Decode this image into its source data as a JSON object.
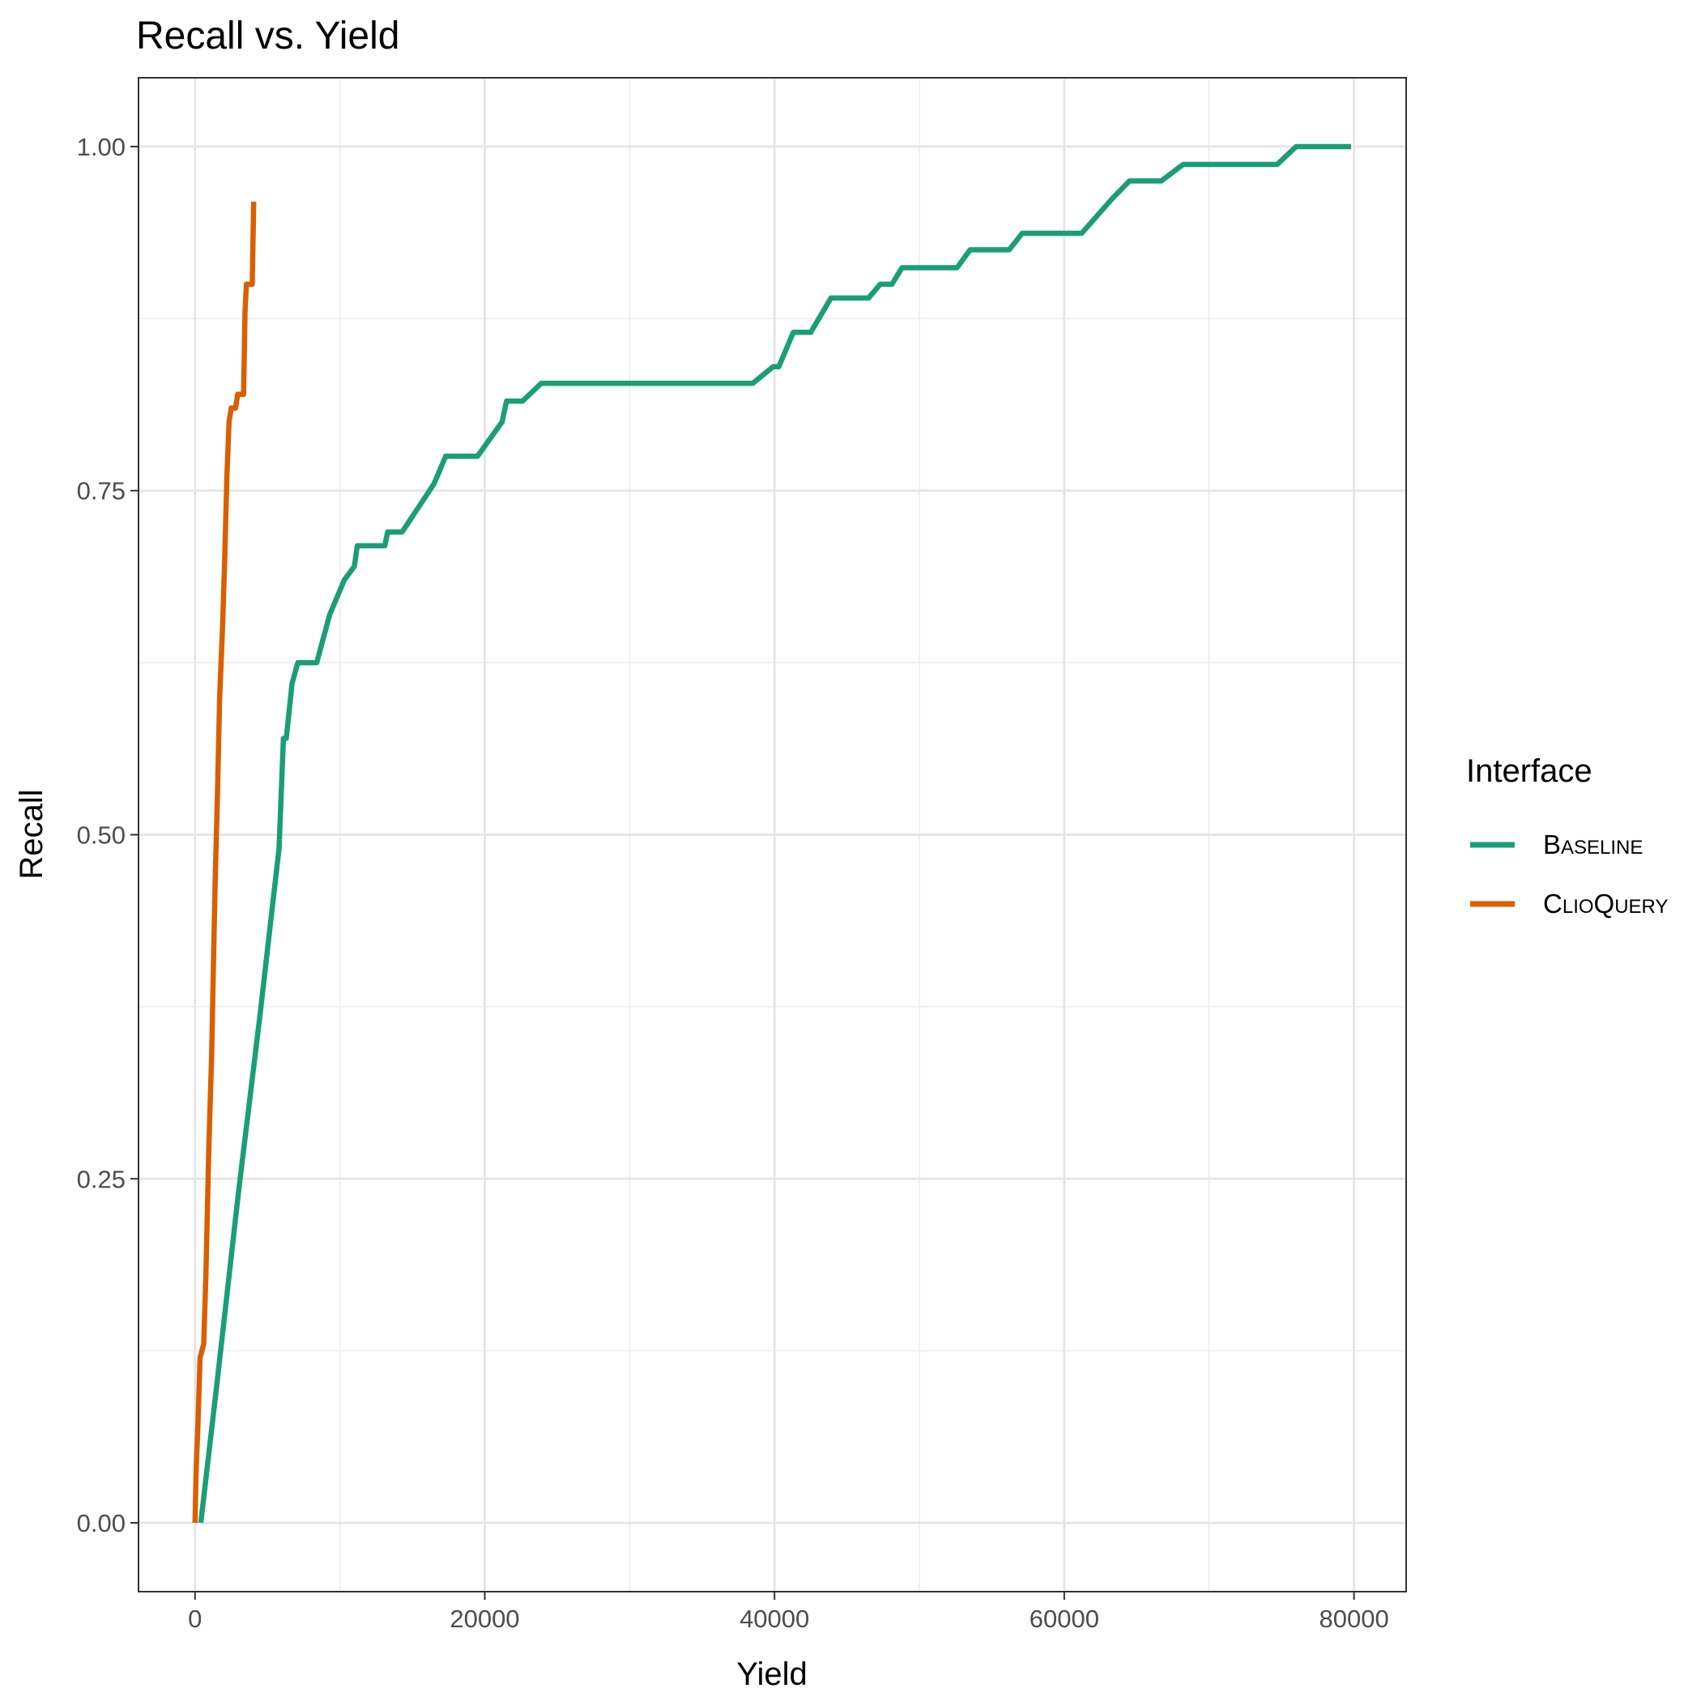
{
  "chart_data": {
    "type": "line",
    "title": "Recall vs. Yield",
    "xlabel": "Yield",
    "ylabel": "Recall",
    "xlim": [
      -3900,
      83600
    ],
    "ylim": [
      -0.05,
      1.05
    ],
    "x_ticks": [
      0,
      20000,
      40000,
      60000,
      80000
    ],
    "x_tick_labels": [
      "0",
      "20000",
      "40000",
      "60000",
      "80000"
    ],
    "y_ticks": [
      0,
      0.25,
      0.5,
      0.75,
      1.0
    ],
    "y_tick_labels": [
      "0.00",
      "0.25",
      "0.50",
      "0.75",
      "1.00"
    ],
    "grid": true,
    "legend": {
      "title": "Interface",
      "position": "right",
      "entries": [
        {
          "cap": "B",
          "rest": "ASELINE",
          "color": "#1b9e77"
        },
        {
          "cap": "C",
          "rest": "LIO",
          "cap2": "Q",
          "rest2": "UERY",
          "color": "#d95f02"
        }
      ]
    },
    "series": [
      {
        "name": "Baseline",
        "color": "#1b9e77",
        "points": [
          [
            400,
            0.0
          ],
          [
            1500,
            0.1
          ],
          [
            3000,
            0.24
          ],
          [
            4500,
            0.37
          ],
          [
            5800,
            0.49
          ],
          [
            6100,
            0.57
          ],
          [
            6300,
            0.57
          ],
          [
            6700,
            0.61
          ],
          [
            7100,
            0.625
          ],
          [
            8400,
            0.625
          ],
          [
            9300,
            0.66
          ],
          [
            10300,
            0.685
          ],
          [
            11000,
            0.695
          ],
          [
            11200,
            0.71
          ],
          [
            13100,
            0.71
          ],
          [
            13300,
            0.72
          ],
          [
            14300,
            0.72
          ],
          [
            16500,
            0.755
          ],
          [
            17300,
            0.775
          ],
          [
            19500,
            0.775
          ],
          [
            21200,
            0.8
          ],
          [
            21500,
            0.815
          ],
          [
            22600,
            0.815
          ],
          [
            23900,
            0.828
          ],
          [
            38500,
            0.828
          ],
          [
            39900,
            0.84
          ],
          [
            40300,
            0.84
          ],
          [
            41300,
            0.865
          ],
          [
            42500,
            0.865
          ],
          [
            43900,
            0.89
          ],
          [
            46500,
            0.89
          ],
          [
            47300,
            0.9
          ],
          [
            48100,
            0.9
          ],
          [
            48800,
            0.912
          ],
          [
            52600,
            0.912
          ],
          [
            53500,
            0.925
          ],
          [
            56200,
            0.925
          ],
          [
            57100,
            0.937
          ],
          [
            61200,
            0.937
          ],
          [
            63300,
            0.962
          ],
          [
            64500,
            0.975
          ],
          [
            66700,
            0.975
          ],
          [
            68200,
            0.987
          ],
          [
            74700,
            0.987
          ],
          [
            76000,
            1.0
          ],
          [
            79800,
            1.0
          ]
        ]
      },
      {
        "name": "ClioQuery",
        "color": "#d95f02",
        "points": [
          [
            0,
            0.0
          ],
          [
            80,
            0.04
          ],
          [
            200,
            0.07
          ],
          [
            350,
            0.12
          ],
          [
            600,
            0.13
          ],
          [
            750,
            0.18
          ],
          [
            950,
            0.27
          ],
          [
            1150,
            0.34
          ],
          [
            1300,
            0.42
          ],
          [
            1400,
            0.47
          ],
          [
            1550,
            0.53
          ],
          [
            1700,
            0.6
          ],
          [
            1900,
            0.65
          ],
          [
            2050,
            0.7
          ],
          [
            2200,
            0.76
          ],
          [
            2350,
            0.8
          ],
          [
            2500,
            0.81
          ],
          [
            2800,
            0.81
          ],
          [
            2950,
            0.82
          ],
          [
            3350,
            0.82
          ],
          [
            3450,
            0.88
          ],
          [
            3550,
            0.9
          ],
          [
            3950,
            0.9
          ],
          [
            4050,
            0.96
          ]
        ]
      }
    ]
  }
}
